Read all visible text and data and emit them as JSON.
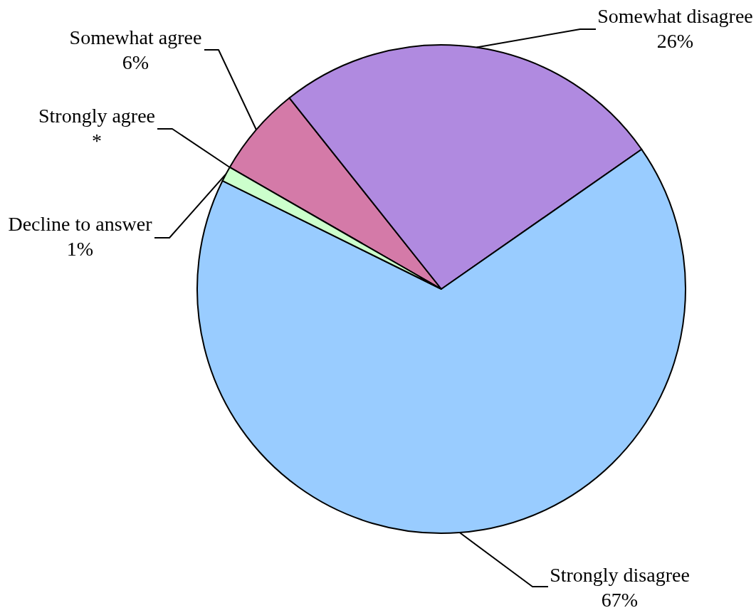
{
  "chart_data": {
    "type": "pie",
    "categories": [
      "Strongly agree",
      "Somewhat agree",
      "Somewhat disagree",
      "Strongly disagree",
      "Decline to answer"
    ],
    "values": [
      0,
      6,
      26,
      67,
      1
    ],
    "colors": [
      null,
      "#d47aa8",
      "#b08ae0",
      "#99ccff",
      "#ccffcc"
    ],
    "value_labels": [
      "*",
      "6%",
      "26%",
      "67%",
      "1%"
    ]
  }
}
